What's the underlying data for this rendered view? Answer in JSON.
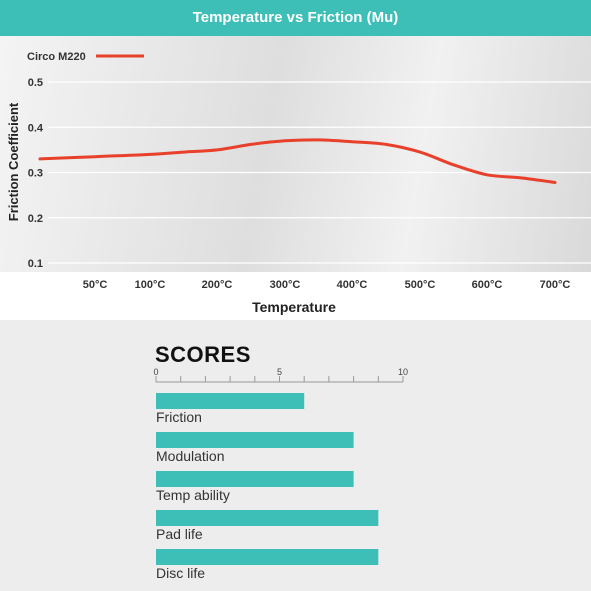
{
  "chart_data": [
    {
      "type": "line",
      "title": "Temperature vs Friction (Mu)",
      "xlabel": "Temperature",
      "ylabel": "Friction Coefficient",
      "x_ticks": [
        "50°C",
        "100°C",
        "200°C",
        "300°C",
        "400°C",
        "500°C",
        "600°C",
        "700°C"
      ],
      "y_ticks": [
        "0.5",
        "0.4",
        "0.3",
        "0.2",
        "0.1"
      ],
      "ylim": [
        0.1,
        0.5
      ],
      "grid": true,
      "legend": "top-left",
      "series": [
        {
          "name": "Circo M220",
          "color": "#e8402a",
          "points": [
            {
              "x": 0,
              "y": 0.33
            },
            {
              "x": 50,
              "y": 0.335
            },
            {
              "x": 100,
              "y": 0.34
            },
            {
              "x": 150,
              "y": 0.345
            },
            {
              "x": 200,
              "y": 0.35
            },
            {
              "x": 250,
              "y": 0.362
            },
            {
              "x": 300,
              "y": 0.37
            },
            {
              "x": 350,
              "y": 0.372
            },
            {
              "x": 400,
              "y": 0.368
            },
            {
              "x": 450,
              "y": 0.362
            },
            {
              "x": 500,
              "y": 0.345
            },
            {
              "x": 550,
              "y": 0.317
            },
            {
              "x": 600,
              "y": 0.295
            },
            {
              "x": 650,
              "y": 0.288
            },
            {
              "x": 700,
              "y": 0.278
            }
          ]
        }
      ]
    },
    {
      "type": "bar",
      "title": "SCORES",
      "orientation": "horizontal",
      "xlim": [
        0,
        10
      ],
      "tick_labels": [
        "0",
        "5",
        "10"
      ],
      "color": "#3dbfb8",
      "categories": [
        "Friction",
        "Modulation",
        "Temp ability",
        "Pad life",
        "Disc life"
      ],
      "values": [
        6,
        8,
        8,
        9,
        9
      ]
    }
  ]
}
